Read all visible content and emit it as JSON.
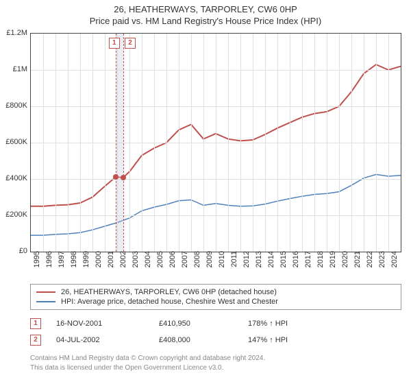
{
  "title": {
    "line1": "26, HEATHERWAYS, TARPORLEY, CW6 0HP",
    "line2": "Price paid vs. HM Land Registry's House Price Index (HPI)"
  },
  "chart": {
    "type": "line",
    "background_color": "#ffffff",
    "grid_color": "#e0e0e0",
    "border_color": "#444444",
    "x": {
      "min": 1995,
      "max": 2025,
      "ticks": [
        1995,
        1996,
        1997,
        1998,
        1999,
        2000,
        2001,
        2002,
        2003,
        2004,
        2005,
        2006,
        2007,
        2008,
        2009,
        2010,
        2011,
        2012,
        2013,
        2014,
        2015,
        2016,
        2017,
        2018,
        2019,
        2020,
        2021,
        2022,
        2023,
        2024
      ]
    },
    "y": {
      "min": 0,
      "max": 1200000,
      "ticks": [
        0,
        200000,
        400000,
        600000,
        800000,
        1000000,
        1200000
      ],
      "labels": [
        "£0",
        "£200K",
        "£400K",
        "£600K",
        "£800K",
        "£1M",
        "£1.2M"
      ]
    },
    "label_fontsize": 11,
    "title_fontsize": 13,
    "series": [
      {
        "name": "property",
        "color": "#c0504d",
        "width": 2,
        "data": [
          [
            1995,
            250000
          ],
          [
            1996,
            250000
          ],
          [
            1997,
            255000
          ],
          [
            1998,
            258000
          ],
          [
            1999,
            268000
          ],
          [
            2000,
            300000
          ],
          [
            2001,
            360000
          ],
          [
            2001.88,
            410950
          ],
          [
            2002.5,
            408000
          ],
          [
            2003,
            440000
          ],
          [
            2004,
            530000
          ],
          [
            2005,
            570000
          ],
          [
            2006,
            600000
          ],
          [
            2007,
            670000
          ],
          [
            2008,
            700000
          ],
          [
            2009,
            620000
          ],
          [
            2010,
            650000
          ],
          [
            2011,
            620000
          ],
          [
            2012,
            610000
          ],
          [
            2013,
            615000
          ],
          [
            2014,
            645000
          ],
          [
            2015,
            680000
          ],
          [
            2016,
            710000
          ],
          [
            2017,
            740000
          ],
          [
            2018,
            760000
          ],
          [
            2019,
            770000
          ],
          [
            2020,
            800000
          ],
          [
            2021,
            880000
          ],
          [
            2022,
            980000
          ],
          [
            2023,
            1030000
          ],
          [
            2024,
            1000000
          ],
          [
            2025,
            1020000
          ]
        ]
      },
      {
        "name": "hpi",
        "color": "#4f81bd",
        "width": 1.5,
        "data": [
          [
            1995,
            90000
          ],
          [
            1996,
            90000
          ],
          [
            1997,
            95000
          ],
          [
            1998,
            98000
          ],
          [
            1999,
            105000
          ],
          [
            2000,
            120000
          ],
          [
            2001,
            140000
          ],
          [
            2002,
            160000
          ],
          [
            2003,
            185000
          ],
          [
            2004,
            225000
          ],
          [
            2005,
            245000
          ],
          [
            2006,
            260000
          ],
          [
            2007,
            280000
          ],
          [
            2008,
            285000
          ],
          [
            2009,
            255000
          ],
          [
            2010,
            265000
          ],
          [
            2011,
            255000
          ],
          [
            2012,
            250000
          ],
          [
            2013,
            252000
          ],
          [
            2014,
            262000
          ],
          [
            2015,
            278000
          ],
          [
            2016,
            292000
          ],
          [
            2017,
            305000
          ],
          [
            2018,
            315000
          ],
          [
            2019,
            320000
          ],
          [
            2020,
            330000
          ],
          [
            2021,
            365000
          ],
          [
            2022,
            405000
          ],
          [
            2023,
            425000
          ],
          [
            2024,
            415000
          ],
          [
            2025,
            420000
          ]
        ]
      }
    ],
    "markers": [
      {
        "num": "1",
        "x": 2001.88,
        "y": 410950,
        "color": "#c0504d"
      },
      {
        "num": "2",
        "x": 2002.5,
        "y": 408000,
        "color": "#c0504d"
      }
    ]
  },
  "legend": {
    "items": [
      {
        "color": "#c0504d",
        "label": "26, HEATHERWAYS, TARPORLEY, CW6 0HP (detached house)"
      },
      {
        "color": "#4f81bd",
        "label": "HPI: Average price, detached house, Cheshire West and Chester"
      }
    ]
  },
  "sales": [
    {
      "num": "1",
      "date": "16-NOV-2001",
      "price": "£410,950",
      "pct": "178% ↑ HPI"
    },
    {
      "num": "2",
      "date": "04-JUL-2002",
      "price": "£408,000",
      "pct": "147% ↑ HPI"
    }
  ],
  "footer": {
    "line1": "Contains HM Land Registry data © Crown copyright and database right 2024.",
    "line2": "This data is licensed under the Open Government Licence v3.0."
  }
}
